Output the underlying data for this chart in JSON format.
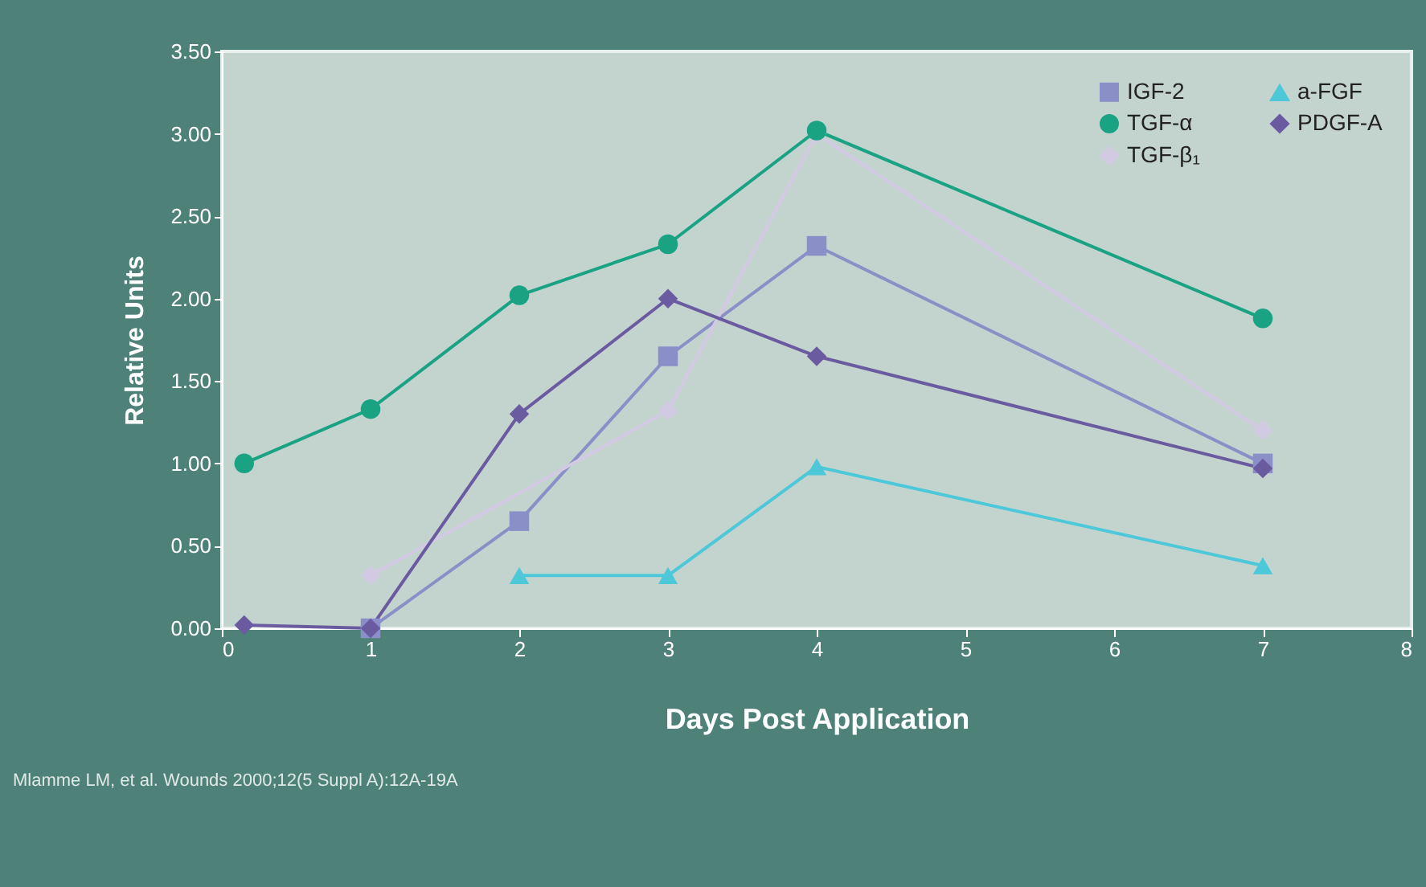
{
  "chart_data": {
    "type": "line",
    "xlabel": "Days Post Application",
    "ylabel": "Relative Units",
    "xlim": [
      0,
      8
    ],
    "xticks": [
      0,
      1,
      2,
      3,
      4,
      5,
      6,
      7,
      8
    ],
    "ylim": [
      0,
      3.5
    ],
    "yticks": [
      {
        "value": 0,
        "label": "0.00"
      },
      {
        "value": 0.5,
        "label": "0.50"
      },
      {
        "value": 1,
        "label": "1.00"
      },
      {
        "value": 1.5,
        "label": "1.50"
      },
      {
        "value": 2,
        "label": "2.00"
      },
      {
        "value": 2.5,
        "label": "2.50"
      },
      {
        "value": 3,
        "label": "3.00"
      },
      {
        "value": 3.5,
        "label": "3.50"
      }
    ],
    "grid": false,
    "legend": "top right",
    "line_style": "solid",
    "series": [
      {
        "name": "IGF-2",
        "color": "#8a8fc8",
        "marker": "square",
        "x": [
          1,
          2,
          3,
          4,
          7
        ],
        "values": [
          0.0,
          0.65,
          1.65,
          2.32,
          1.0
        ]
      },
      {
        "name": "TGF-α",
        "color": "#1aa383",
        "marker": "circle",
        "x": [
          0.15,
          1,
          2,
          3,
          4,
          7
        ],
        "values": [
          1.0,
          1.33,
          2.02,
          2.33,
          3.02,
          1.88
        ]
      },
      {
        "name": "TGF-β₁",
        "color": "#d2cae2",
        "marker": "diamond",
        "x": [
          1,
          3,
          4,
          7
        ],
        "values": [
          0.32,
          1.32,
          3.0,
          1.2
        ]
      },
      {
        "name": "a-FGF",
        "color": "#4cc8d8",
        "marker": "triangle",
        "x": [
          2,
          3,
          4,
          7
        ],
        "values": [
          0.32,
          0.32,
          0.98,
          0.38
        ]
      },
      {
        "name": "PDGF-A",
        "color": "#6a5aa0",
        "marker": "diamond",
        "x": [
          0.15,
          1,
          2,
          3,
          4,
          7
        ],
        "values": [
          0.02,
          0.0,
          1.3,
          2.0,
          1.65,
          0.97
        ]
      }
    ],
    "annotations": [
      "Mlamme LM, et al. Wounds 2000;12(5 Suppl A):12A-19A"
    ]
  }
}
